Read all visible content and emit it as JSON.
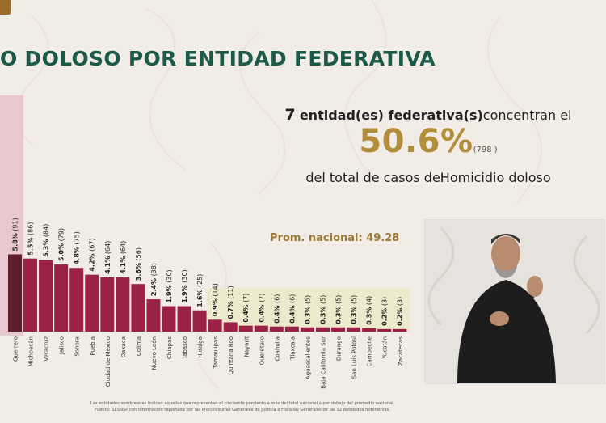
{
  "title": "O DOLOSO POR ENTIDAD FEDERATIVA",
  "summary": {
    "count": "7",
    "text_a": "entidad(es) federativa(s)",
    "text_b": "concentran el",
    "percent": "50.6%",
    "cases": "(798 )",
    "text_c": "del total de casos de",
    "crime": "Homicidio doloso"
  },
  "prom_label": "Prom. nacional: 49.28",
  "footnotes": [
    "Las entidades sombreadas indican aquellas que representan el cincuenta porciento o más del total nacional o por debajo del promedio nacional.",
    "Fuente: SESNSP con información reportada por las Procuradurías Generales de Justicia o Fiscalías Generales de las 32 entidades federativas."
  ],
  "colors": {
    "bar_dark": "#5e1f2a",
    "bar": "#9b2247",
    "title": "#1b5a48",
    "gold": "#b38e3a",
    "band": "#e9c9cf",
    "below_avg_bg": "#ece9cc"
  },
  "chart_data": {
    "type": "bar",
    "categories": [
      "Guerrero",
      "Michoacán",
      "Veracruz",
      "Jalisco",
      "Sonora",
      "Puebla",
      "Ciudad de México",
      "Oaxaca",
      "Colima",
      "Nuevo León",
      "Chiapas",
      "Tabasco",
      "Hidalgo",
      "Tamaulipas",
      "Quintana Roo",
      "Nayarit",
      "Querétaro",
      "Coahuila",
      "Tlaxcala",
      "Aguascalientes",
      "Baja California Sur",
      "Durango",
      "San Luis Potosí",
      "Campeche",
      "Yucatán",
      "Zacatecas"
    ],
    "values": [
      91,
      86,
      84,
      79,
      75,
      67,
      64,
      64,
      56,
      38,
      30,
      30,
      25,
      14,
      11,
      7,
      7,
      6,
      6,
      5,
      5,
      5,
      5,
      4,
      3,
      3
    ],
    "labels": [
      "5.8% (91)",
      "5.5% (86)",
      "5.3% (84)",
      "5.0% (79)",
      "4.8% (75)",
      "4.2% (67)",
      "4.1% (64)",
      "4.1% (64)",
      "3.6% (56)",
      "2.4% (38)",
      "1.9% (30)",
      "1.9% (30)",
      "1.6% (25)",
      "0.9% (14)",
      "0.7% (11)",
      "0.4% (7)",
      "0.4% (7)",
      "0.4% (6)",
      "0.4% (6)",
      "0.3% (5)",
      "0.3% (5)",
      "0.3% (5)",
      "0.3% (5)",
      "0.3% (4)",
      "0.2% (3)",
      "0.2% (3)"
    ],
    "partial_left_values": [
      98,
      102
    ],
    "highlight_count": 1,
    "below_average_from_index": 13,
    "national_average": 49.28,
    "xlabel": "",
    "ylabel": ""
  }
}
